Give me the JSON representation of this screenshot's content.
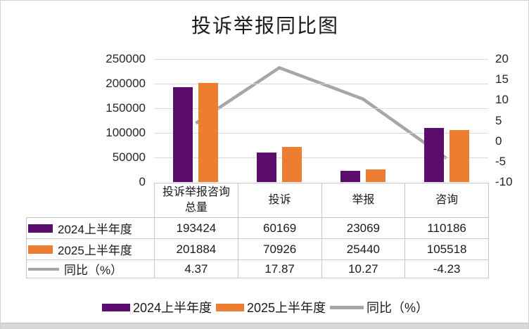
{
  "chart_data": {
    "type": "bar+line combo with data table",
    "title": "投诉举报同比图",
    "categories": [
      "投诉举报咨询\n总量",
      "投诉",
      "举报",
      "咨询"
    ],
    "series": [
      {
        "name": "2024上半年度",
        "type": "bar",
        "color": "#5B0D6E",
        "axis": "left",
        "values": [
          193424,
          60169,
          23069,
          110186
        ]
      },
      {
        "name": "2025上半年度",
        "type": "bar",
        "color": "#ED7D31",
        "axis": "left",
        "values": [
          201884,
          70926,
          25440,
          105518
        ]
      },
      {
        "name": "同比（%）",
        "type": "line",
        "color": "#A6A6A6",
        "axis": "right",
        "values": [
          4.37,
          17.87,
          10.27,
          -4.23
        ]
      }
    ],
    "left_axis": {
      "min": 0,
      "max": 250000,
      "step": 50000,
      "ticks": [
        "250000",
        "200000",
        "150000",
        "100000",
        "50000",
        "0"
      ]
    },
    "right_axis": {
      "min": -10,
      "max": 20,
      "step": 5,
      "ticks": [
        "20",
        "15",
        "10",
        "5",
        "0",
        "-5",
        "-10"
      ]
    },
    "gridlines": true,
    "legend_position": "bottom",
    "data_table_shown": true,
    "colors": {
      "gridline": "#d9d9d9",
      "table_border": "#c9c7c7",
      "axis_text": "#262626"
    }
  }
}
